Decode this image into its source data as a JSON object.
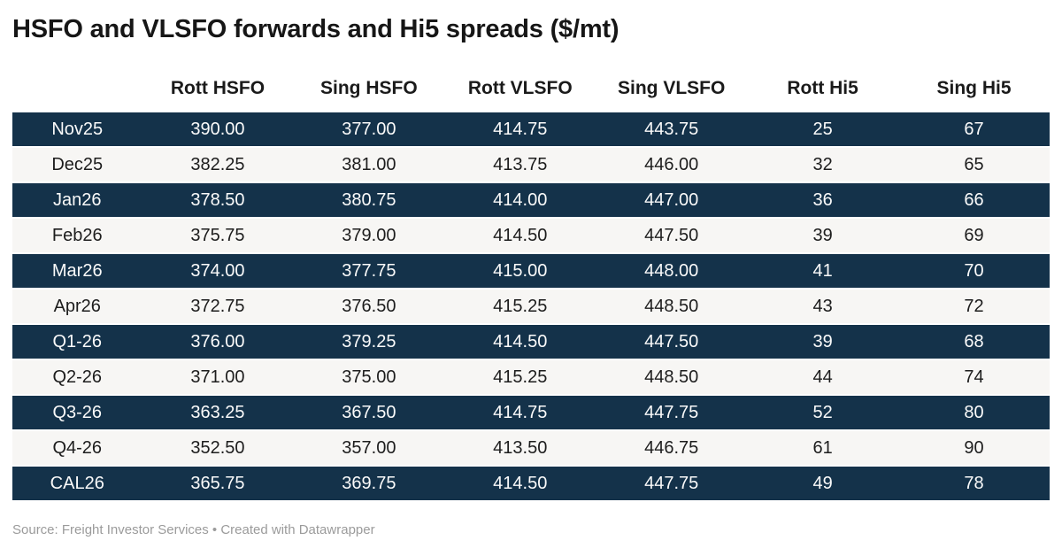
{
  "header": {
    "title": "HSFO and VLSFO forwards and Hi5 spreads ($/mt)"
  },
  "colors": {
    "dark_row_bg": "#14324a",
    "dark_row_text": "#fafafa",
    "light_row_bg": "#f7f6f4",
    "light_row_text": "#1d1d1d",
    "header_text": "#1a1a1a",
    "footer_text": "#9b9b9b",
    "page_bg": "#ffffff"
  },
  "chart_data": {
    "type": "table",
    "title": "HSFO and VLSFO forwards and Hi5 spreads ($/mt)",
    "columns": [
      "",
      "Rott HSFO",
      "Sing HSFO",
      "Rott VLSFO",
      "Sing VLSFO",
      "Rott Hi5",
      "Sing Hi5"
    ],
    "rows": [
      {
        "label": "Nov25",
        "values": [
          "390.00",
          "377.00",
          "414.75",
          "443.75",
          "25",
          "67"
        ]
      },
      {
        "label": "Dec25",
        "values": [
          "382.25",
          "381.00",
          "413.75",
          "446.00",
          "32",
          "65"
        ]
      },
      {
        "label": "Jan26",
        "values": [
          "378.50",
          "380.75",
          "414.00",
          "447.00",
          "36",
          "66"
        ]
      },
      {
        "label": "Feb26",
        "values": [
          "375.75",
          "379.00",
          "414.50",
          "447.50",
          "39",
          "69"
        ]
      },
      {
        "label": "Mar26",
        "values": [
          "374.00",
          "377.75",
          "415.00",
          "448.00",
          "41",
          "70"
        ]
      },
      {
        "label": "Apr26",
        "values": [
          "372.75",
          "376.50",
          "415.25",
          "448.50",
          "43",
          "72"
        ]
      },
      {
        "label": "Q1-26",
        "values": [
          "376.00",
          "379.25",
          "414.50",
          "447.50",
          "39",
          "68"
        ]
      },
      {
        "label": "Q2-26",
        "values": [
          "371.00",
          "375.00",
          "415.25",
          "448.50",
          "44",
          "74"
        ]
      },
      {
        "label": "Q3-26",
        "values": [
          "363.25",
          "367.50",
          "414.75",
          "447.75",
          "52",
          "80"
        ]
      },
      {
        "label": "Q4-26",
        "values": [
          "352.50",
          "357.00",
          "413.50",
          "446.75",
          "61",
          "90"
        ]
      },
      {
        "label": "CAL26",
        "values": [
          "365.75",
          "369.75",
          "414.50",
          "447.75",
          "49",
          "78"
        ]
      }
    ],
    "layout": {
      "row_striping": "alternating dark navy / light gray starting dark",
      "legend": "none",
      "grid": "off"
    }
  },
  "footer": {
    "text": "Source: Freight Investor Services • Created with Datawrapper"
  }
}
